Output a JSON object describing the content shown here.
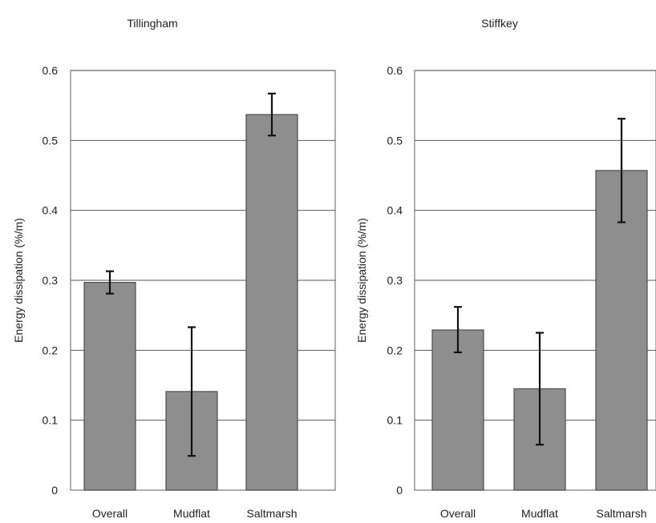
{
  "chart_data": [
    {
      "type": "bar",
      "title": "Tillingham",
      "ylabel": "Energy dissipation (%/m)",
      "categories": [
        "Overall",
        "Mudflat",
        "Saltmarsh"
      ],
      "values": [
        0.297,
        0.141,
        0.537
      ],
      "error_bars": [
        [
          0.281,
          0.313
        ],
        [
          0.049,
          0.233
        ],
        [
          0.507,
          0.567
        ]
      ],
      "ylim": [
        0,
        0.6
      ],
      "yticks": [
        "0",
        "0.1",
        "0.2",
        "0.3",
        "0.4",
        "0.5",
        "0.6"
      ],
      "grid": true,
      "colors": {
        "bar": "#8e8e8e",
        "bar_edge": "#4d4d4d",
        "error": "#111111",
        "grid": "#5a5a5a"
      }
    },
    {
      "type": "bar",
      "title": "Stiffkey",
      "ylabel": "Energy dissipation (%/m)",
      "categories": [
        "Overall",
        "Mudflat",
        "Saltmarsh"
      ],
      "values": [
        0.229,
        0.145,
        0.457
      ],
      "error_bars": [
        [
          0.197,
          0.262
        ],
        [
          0.065,
          0.225
        ],
        [
          0.383,
          0.531
        ]
      ],
      "ylim": [
        0,
        0.6
      ],
      "yticks": [
        "0",
        "0.1",
        "0.2",
        "0.3",
        "0.4",
        "0.5",
        "0.6"
      ],
      "grid": true,
      "colors": {
        "bar": "#8e8e8e",
        "bar_edge": "#4d4d4d",
        "error": "#111111",
        "grid": "#5a5a5a"
      }
    }
  ]
}
